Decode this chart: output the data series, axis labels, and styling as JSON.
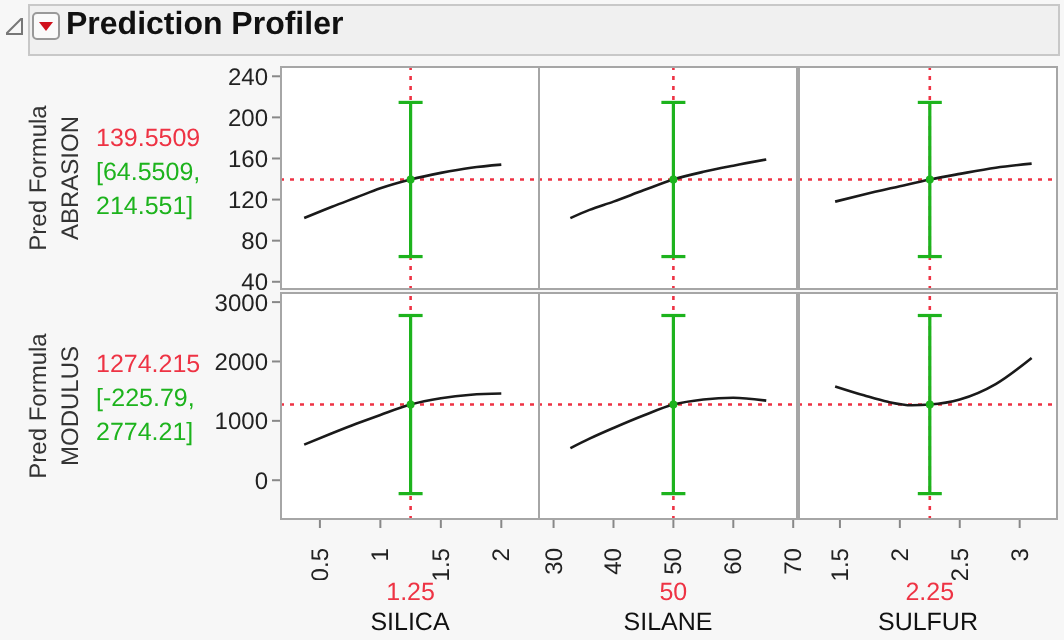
{
  "chart_data": [
    {
      "type": "line",
      "title": "Prediction Profiler",
      "ylabel": "Pred Formula ABRASION",
      "annotations": [
        "[64.5509, 214.551]"
      ],
      "xlim": [
        0.17,
        2.32
      ],
      "xticks": [
        0.5,
        1,
        1.5,
        2
      ],
      "ylim": [
        32,
        250
      ],
      "yticks": [
        40,
        80,
        120,
        160,
        200,
        240
      ],
      "tick_labels": "y",
      "legend": false,
      "grid": false,
      "series": [
        {
          "color": "#1a1a1a",
          "x": [
            0.37,
            0.6,
            0.8,
            1.0,
            1.25,
            1.5,
            1.75,
            2.0
          ],
          "values": [
            102,
            113,
            122,
            131,
            139.5509,
            146,
            151,
            154
          ]
        },
        {
          "type": "scatter",
          "color": "#1db31d",
          "x": [
            1.25
          ],
          "values": [
            139.5509
          ],
          "errors": [
            [
              64.5509,
              214.551
            ]
          ]
        }
      ],
      "ref_lines": [
        {
          "axis": "y",
          "value": 139.5509,
          "label": "139.5509",
          "color": "#ee3344",
          "line_style": "dotted"
        },
        {
          "axis": "x",
          "value": 1.25,
          "color": "#ee3344",
          "line_style": "dotted"
        }
      ]
    },
    {
      "type": "line",
      "xlim": [
        27.4,
        70.8
      ],
      "xticks": [
        30,
        40,
        50,
        60,
        70
      ],
      "ylim": [
        32,
        250
      ],
      "yticks": [
        40,
        80,
        120,
        160,
        200,
        240
      ],
      "tick_labels": false,
      "legend": false,
      "grid": false,
      "series": [
        {
          "color": "#1a1a1a",
          "x": [
            32.8,
            36,
            40,
            45,
            50,
            55,
            60,
            65.5
          ],
          "values": [
            102,
            110,
            118,
            129,
            139.5509,
            147,
            153,
            159
          ]
        },
        {
          "type": "scatter",
          "color": "#1db31d",
          "x": [
            50
          ],
          "values": [
            139.5509
          ],
          "errors": [
            [
              64.5509,
              214.551
            ]
          ]
        }
      ],
      "ref_lines": [
        {
          "axis": "y",
          "value": 139.5509,
          "color": "#ee3344",
          "line_style": "dotted"
        },
        {
          "axis": "x",
          "value": 50,
          "color": "#ee3344",
          "line_style": "dotted"
        }
      ]
    },
    {
      "type": "line",
      "xlim": [
        1.15,
        3.32
      ],
      "xticks": [
        1.5,
        2,
        2.5,
        3
      ],
      "ylim": [
        32,
        250
      ],
      "yticks": [
        40,
        80,
        120,
        160,
        200,
        240
      ],
      "tick_labels": false,
      "legend": false,
      "grid": false,
      "series": [
        {
          "color": "#1a1a1a",
          "x": [
            1.46,
            1.7,
            2.0,
            2.25,
            2.5,
            2.8,
            3.1
          ],
          "values": [
            118,
            125,
            133,
            139.5509,
            145,
            151,
            155
          ]
        },
        {
          "type": "scatter",
          "color": "#1db31d",
          "x": [
            2.25
          ],
          "values": [
            139.5509
          ],
          "errors": [
            [
              64.5509,
              214.551
            ]
          ]
        }
      ],
      "ref_lines": [
        {
          "axis": "y",
          "value": 139.5509,
          "color": "#ee3344",
          "line_style": "dotted"
        },
        {
          "axis": "x",
          "value": 2.25,
          "color": "#ee3344",
          "line_style": "dotted"
        }
      ]
    },
    {
      "type": "line",
      "xlabel": "SILICA",
      "ylabel": "Pred Formula MODULUS",
      "annotations": [
        "[-225.79, 2774.21]"
      ],
      "xlim": [
        0.17,
        2.32
      ],
      "xticks": [
        0.5,
        1,
        1.5,
        2
      ],
      "ylim": [
        -670,
        3170
      ],
      "yticks": [
        0,
        1000,
        2000,
        3000
      ],
      "tick_labels": "xy",
      "legend": false,
      "grid": false,
      "series": [
        {
          "color": "#1a1a1a",
          "x": [
            0.37,
            0.6,
            0.8,
            1.0,
            1.25,
            1.5,
            1.75,
            2.0
          ],
          "values": [
            600,
            790,
            950,
            1100,
            1274.215,
            1380,
            1440,
            1460
          ]
        },
        {
          "type": "scatter",
          "color": "#1db31d",
          "x": [
            1.25
          ],
          "values": [
            1274.215
          ],
          "errors": [
            [
              -225.79,
              2774.21
            ]
          ]
        }
      ],
      "ref_lines": [
        {
          "axis": "y",
          "value": 1274.215,
          "label": "1274.215",
          "color": "#ee3344",
          "line_style": "dotted"
        },
        {
          "axis": "x",
          "value": 1.25,
          "label": "1.25",
          "color": "#ee3344",
          "line_style": "dotted"
        }
      ]
    },
    {
      "type": "line",
      "xlabel": "SILANE",
      "xlim": [
        27.4,
        70.8
      ],
      "xticks": [
        30,
        40,
        50,
        60,
        70
      ],
      "ylim": [
        -670,
        3170
      ],
      "yticks": [
        0,
        1000,
        2000,
        3000
      ],
      "tick_labels": "x",
      "legend": false,
      "grid": false,
      "series": [
        {
          "color": "#1a1a1a",
          "x": [
            32.8,
            36,
            40,
            45,
            50,
            55,
            60,
            65.5
          ],
          "values": [
            540,
            700,
            880,
            1090,
            1274.215,
            1360,
            1390,
            1340
          ]
        },
        {
          "type": "scatter",
          "color": "#1db31d",
          "x": [
            50
          ],
          "values": [
            1274.215
          ],
          "errors": [
            [
              -225.79,
              2774.21
            ]
          ]
        }
      ],
      "ref_lines": [
        {
          "axis": "y",
          "value": 1274.215,
          "color": "#ee3344",
          "line_style": "dotted"
        },
        {
          "axis": "x",
          "value": 50,
          "label": "50",
          "color": "#ee3344",
          "line_style": "dotted"
        }
      ]
    },
    {
      "type": "line",
      "xlabel": "SULFUR",
      "xlim": [
        1.15,
        3.32
      ],
      "xticks": [
        1.5,
        2,
        2.5,
        3
      ],
      "ylim": [
        -670,
        3170
      ],
      "yticks": [
        0,
        1000,
        2000,
        3000
      ],
      "tick_labels": "x",
      "legend": false,
      "grid": false,
      "series": [
        {
          "color": "#1a1a1a",
          "x": [
            1.46,
            1.7,
            1.9,
            2.1,
            2.25,
            2.5,
            2.8,
            3.1
          ],
          "values": [
            1580,
            1430,
            1320,
            1262,
            1274.215,
            1360,
            1620,
            2060
          ]
        },
        {
          "type": "scatter",
          "color": "#1db31d",
          "x": [
            2.25
          ],
          "values": [
            1274.215
          ],
          "errors": [
            [
              -225.79,
              2774.21
            ]
          ]
        }
      ],
      "ref_lines": [
        {
          "axis": "y",
          "value": 1274.215,
          "color": "#ee3344",
          "line_style": "dotted"
        },
        {
          "axis": "x",
          "value": 2.25,
          "label": "2.25",
          "color": "#ee3344",
          "line_style": "dotted"
        }
      ]
    }
  ]
}
